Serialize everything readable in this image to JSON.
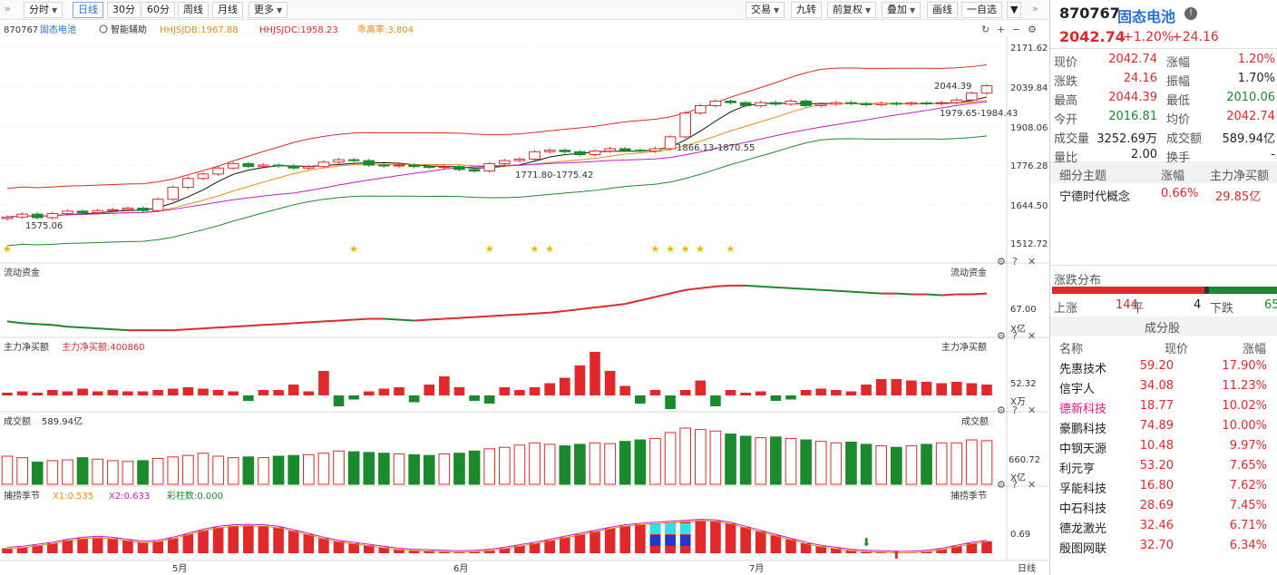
{
  "toolbar": {
    "left_buttons": [
      "分时",
      "日线",
      "30分",
      "60分",
      "周线",
      "月线",
      "更多"
    ],
    "right_buttons": [
      "交易",
      "九转",
      "前复权",
      "叠加",
      "画线",
      "一自选"
    ],
    "active": "日线"
  },
  "info_bar": {
    "code": "870767",
    "name": "固态电池",
    "assist": "智能辅助",
    "hhjsjdb": "HHJSJDB:1967.88",
    "hhjsjdc": "HHJSJDC:1958.23",
    "dev": "乖离率:3.804"
  },
  "panels": {
    "fund_flow": "流动资金",
    "fund_unit": "X亿",
    "fund_val": "67.00",
    "net_buy": "主力净买额",
    "net_buy_label": "主力净买额:400860",
    "net_unit": "X万",
    "net_val": "52.32",
    "volume": "成交额",
    "volume_label": "589.94亿",
    "vol_unit": "X亿",
    "vol_val": "660.72",
    "season": "捕捞季节",
    "x1": "X1:0.535",
    "x2": "X2:0.633",
    "bars": "彩柱数:0.000",
    "season_val": "0.69"
  },
  "price_axis": [
    "2171.62",
    "2039.84",
    "1908.06",
    "1776.28",
    "1644.50",
    "1512.72"
  ],
  "annotations": {
    "high": "2044.39",
    "a1": "1979.65-1984.43",
    "a2": "1866.13-1870.55",
    "a3": "1771.80-1775.42",
    "low": "1575.06"
  },
  "date_axis": [
    "5月",
    "6月",
    "7月"
  ],
  "period_label": "日线",
  "quote": {
    "code": "870767",
    "name": "固态电池",
    "price": "2042.74",
    "pct": "+1.20%",
    "chg": "+24.16",
    "stats": [
      [
        "现价",
        "2042.74",
        "red",
        "涨幅",
        "1.20%",
        "red"
      ],
      [
        "涨跌",
        "24.16",
        "red",
        "振幅",
        "1.70%",
        "dark"
      ],
      [
        "最高",
        "2044.39",
        "red",
        "最低",
        "2010.06",
        "green"
      ],
      [
        "今开",
        "2016.81",
        "green",
        "均价",
        "2042.74",
        "red"
      ],
      [
        "成交量",
        "3252.69万",
        "dark",
        "成交额",
        "589.94亿",
        "dark"
      ],
      [
        "量比",
        "2.00",
        "dark",
        "换手",
        "-",
        "dark"
      ]
    ],
    "theme_header": [
      "细分主题",
      "涨幅",
      "主力净买额"
    ],
    "theme": [
      "宁德时代概念",
      "0.66%",
      "29.85亿"
    ],
    "dist_title": "涨跌分布",
    "dist": {
      "up_label": "上涨",
      "up": "144",
      "flat_label": "平",
      "flat": "4",
      "down_label": "下跌",
      "down": "65"
    },
    "constituents_title": "成分股",
    "const_header": [
      "名称",
      "现价",
      "涨幅"
    ],
    "constituents": [
      [
        "先惠技术",
        "59.20",
        "17.90%"
      ],
      [
        "信宇人",
        "34.08",
        "11.23%"
      ],
      [
        "德新科技",
        "18.77",
        "10.02%"
      ],
      [
        "豪鹏科技",
        "74.89",
        "10.00%"
      ],
      [
        "中钢天源",
        "10.48",
        "9.97%"
      ],
      [
        "利元亨",
        "53.20",
        "7.65%"
      ],
      [
        "孚能科技",
        "16.80",
        "7.62%"
      ],
      [
        "中石科技",
        "28.69",
        "7.45%"
      ],
      [
        "德龙激光",
        "32.46",
        "6.71%"
      ],
      [
        "殷图网联",
        "32.70",
        "6.34%"
      ]
    ]
  },
  "colors": {
    "up": "#e0292a",
    "down": "#1a8a2c",
    "accent": "#2b6fd6"
  },
  "chart_data": {
    "type": "candlestick",
    "close": [
      1600,
      1610,
      1598,
      1612,
      1620,
      1615,
      1622,
      1625,
      1630,
      1622,
      1660,
      1700,
      1730,
      1745,
      1765,
      1780,
      1770,
      1775,
      1772,
      1765,
      1770,
      1785,
      1793,
      1790,
      1775,
      1772,
      1775,
      1770,
      1768,
      1770,
      1760,
      1755,
      1780,
      1790,
      1795,
      1820,
      1825,
      1820,
      1810,
      1822,
      1830,
      1825,
      1822,
      1830,
      1870,
      1950,
      1975,
      1990,
      1985,
      1975,
      1985,
      1980,
      1990,
      1975,
      1980,
      1985,
      1982,
      1978,
      1983,
      1980,
      1984,
      1982,
      1985,
      1994,
      2017,
      2042
    ],
    "volume": [
      380,
      360,
      300,
      320,
      330,
      360,
      340,
      320,
      310,
      320,
      350,
      370,
      390,
      420,
      380,
      360,
      370,
      360,
      380,
      390,
      400,
      420,
      450,
      440,
      430,
      420,
      410,
      400,
      390,
      410,
      420,
      450,
      480,
      500,
      530,
      560,
      540,
      520,
      540,
      560,
      550,
      580,
      600,
      620,
      700,
      760,
      740,
      720,
      680,
      650,
      630,
      640,
      620,
      600,
      580,
      560,
      570,
      540,
      520,
      500,
      520,
      540,
      560,
      560,
      600,
      589.94
    ],
    "net_buy": [
      2,
      3,
      2,
      4,
      3,
      5,
      3,
      4,
      3,
      3,
      4,
      5,
      6,
      5,
      4,
      3,
      -4,
      4,
      4,
      8,
      3,
      18,
      -8,
      -3,
      3,
      5,
      6,
      -5,
      8,
      14,
      6,
      -4,
      -6,
      6,
      4,
      6,
      9,
      13,
      22,
      32,
      18,
      7,
      -6,
      4,
      -10,
      4,
      11,
      -8,
      4,
      2,
      3,
      -4,
      -3,
      4,
      5,
      4,
      3,
      8,
      12,
      12,
      11,
      10,
      9,
      10,
      9,
      8
    ],
    "fund_flow": [
      48,
      46,
      45,
      44,
      42,
      41,
      40,
      39,
      38,
      38,
      38,
      38,
      39,
      40,
      41,
      42,
      43,
      44,
      45,
      46,
      47,
      48,
      49,
      50,
      51,
      51,
      50,
      49,
      50,
      51,
      52,
      53,
      54,
      55,
      56,
      57,
      58,
      60,
      62,
      64,
      66,
      68,
      72,
      76,
      80,
      84,
      86,
      88,
      89,
      89,
      88,
      87,
      86,
      85,
      84,
      83,
      82,
      81,
      80,
      80,
      79,
      79,
      78,
      79,
      79,
      80
    ],
    "season": [
      0.5,
      0.52,
      0.56,
      0.6,
      0.66,
      0.7,
      0.72,
      0.7,
      0.66,
      0.62,
      0.64,
      0.7,
      0.78,
      0.86,
      0.92,
      0.95,
      0.96,
      0.95,
      0.92,
      0.85,
      0.78,
      0.7,
      0.64,
      0.6,
      0.56,
      0.52,
      0.48,
      0.46,
      0.45,
      0.44,
      0.43,
      0.44,
      0.46,
      0.5,
      0.55,
      0.6,
      0.66,
      0.72,
      0.78,
      0.84,
      0.9,
      0.95,
      0.98,
      1.0,
      1.02,
      1.04,
      1.06,
      1.05,
      1.0,
      0.92,
      0.84,
      0.76,
      0.68,
      0.6,
      0.54,
      0.5,
      0.46,
      0.44,
      0.43,
      0.42,
      0.42,
      0.44,
      0.48,
      0.54,
      0.6,
      0.64
    ]
  }
}
